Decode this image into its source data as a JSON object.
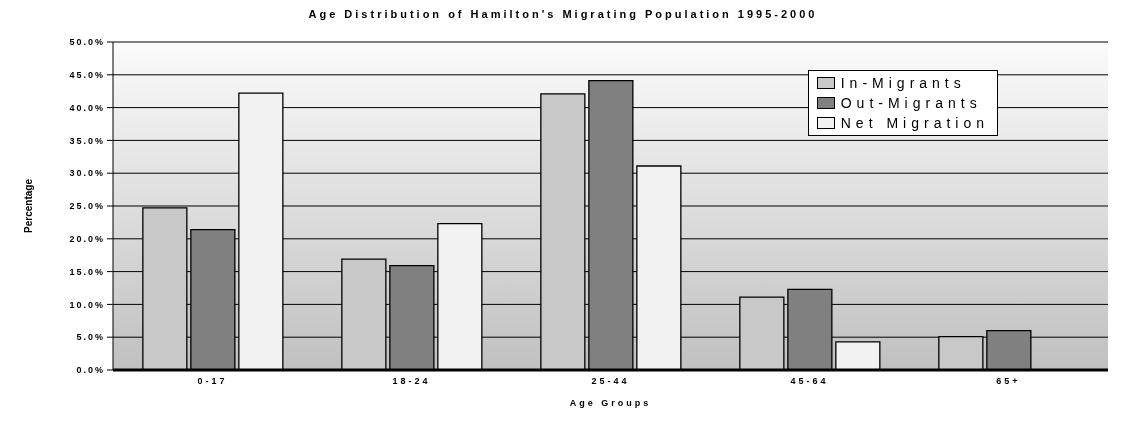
{
  "chart_data": {
    "type": "bar",
    "title": "Age Distribution of Hamilton's Migrating Population 1995-2000",
    "xlabel": "Age Groups",
    "ylabel": "Percentage",
    "categories": [
      "0-17",
      "18-24",
      "25-44",
      "45-64",
      "65+"
    ],
    "series": [
      {
        "name": "In-Migrants",
        "color": "#c8c8c8",
        "values": [
          24.7,
          16.9,
          42.1,
          11.1,
          5.1
        ]
      },
      {
        "name": "Out-Migrants",
        "color": "#808080",
        "values": [
          21.4,
          15.9,
          44.1,
          12.3,
          6.0
        ]
      },
      {
        "name": "Net Migration",
        "color": "#f2f2f2",
        "values": [
          42.2,
          22.3,
          31.1,
          4.3,
          null
        ]
      }
    ],
    "ylim": [
      0,
      50
    ],
    "yticks": [
      {
        "value": 0,
        "label": "0.0%"
      },
      {
        "value": 5,
        "label": "5.0%"
      },
      {
        "value": 10,
        "label": "10.0%"
      },
      {
        "value": 15,
        "label": "15.0%"
      },
      {
        "value": 20,
        "label": "20.0%"
      },
      {
        "value": 25,
        "label": "25.0%"
      },
      {
        "value": 30,
        "label": "30.0%"
      },
      {
        "value": 35,
        "label": "35.0%"
      },
      {
        "value": 40,
        "label": "40.0%"
      },
      {
        "value": 45,
        "label": "45.0%"
      },
      {
        "value": 50,
        "label": "50.0%"
      }
    ],
    "grid": "y",
    "legend": "top right"
  }
}
